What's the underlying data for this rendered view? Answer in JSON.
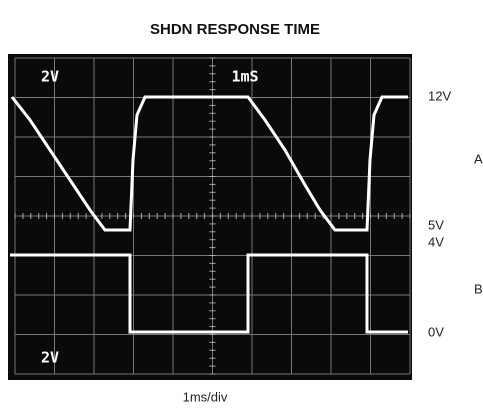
{
  "title": "SHDN RESPONSE TIME",
  "screen": {
    "ch_a_scale": "2V",
    "timebase": "1mS",
    "ch_b_scale": "2V"
  },
  "levels": [
    "12V",
    "5V",
    "4V",
    "0V"
  ],
  "traces": [
    "A",
    "B"
  ],
  "x_label": "1ms/div"
}
